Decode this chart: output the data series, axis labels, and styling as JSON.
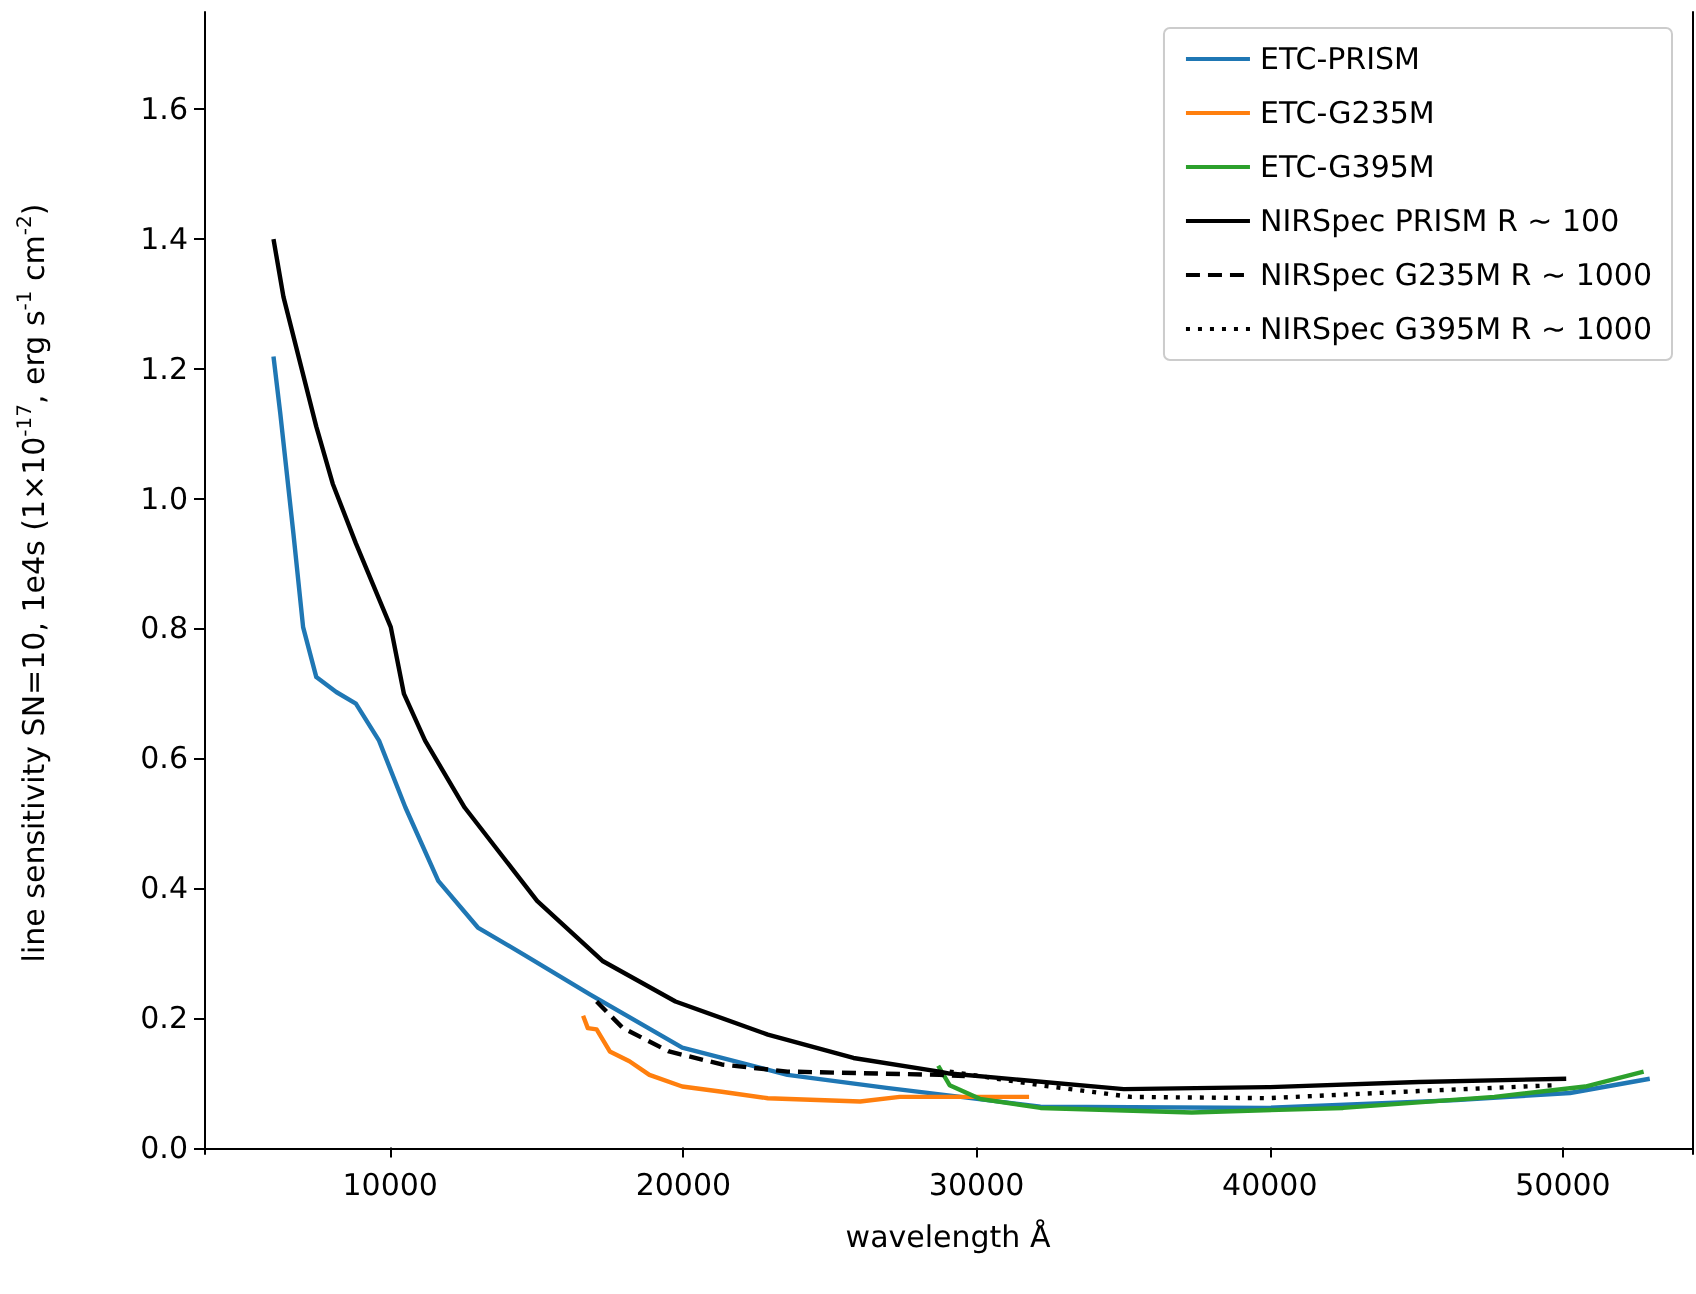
{
  "chart_data": {
    "type": "line",
    "xlabel": "wavelength Å",
    "ylabel": "line sensitivity SN=10, 1e4s (1×10$^{-17}$, erg s$^{-1}$ cm$^{-2}$)",
    "xlim": [
      3650,
      54400
    ],
    "ylim": [
      -0.01,
      1.75
    ],
    "xticks": [
      10000,
      20000,
      30000,
      40000,
      50000
    ],
    "yticks": [
      {
        "value": 0,
        "label": "0.0"
      },
      0.2,
      0.4,
      0.6,
      0.8,
      {
        "value": 1,
        "label": "1.0"
      },
      1.2,
      1.4,
      1.6
    ],
    "grid": false,
    "legend": "top right",
    "marker": "none",
    "series": [
      {
        "name": "ETC-PRISM",
        "color": "#1f77b4",
        "line_style": "solid",
        "x": [
          6020,
          6250,
          6700,
          7030,
          7480,
          8160,
          8830,
          9620,
          10520,
          11640,
          12990,
          14570,
          16810,
          19960,
          23550,
          26930,
          32180,
          39920,
          46370,
          50240,
          52960
        ],
        "values": [
          1.219,
          1.132,
          0.946,
          0.802,
          0.725,
          0.702,
          0.684,
          0.627,
          0.524,
          0.411,
          0.339,
          0.297,
          0.236,
          0.154,
          0.112,
          0.092,
          0.063,
          0.061,
          0.073,
          0.084,
          0.106
        ]
      },
      {
        "name": "ETC-G235M",
        "color": "#ff7f0e",
        "line_style": "solid",
        "x": [
          16580,
          16740,
          17040,
          17490,
          18160,
          18840,
          19960,
          21310,
          22880,
          26030,
          27380,
          29600,
          31790
        ],
        "values": [
          0.203,
          0.184,
          0.182,
          0.148,
          0.133,
          0.112,
          0.094,
          0.086,
          0.076,
          0.071,
          0.078,
          0.078,
          0.078
        ]
      },
      {
        "name": "ETC-G395M",
        "color": "#2ca02c",
        "line_style": "solid",
        "x": [
          28690,
          29080,
          30110,
          32180,
          37340,
          42500,
          47660,
          50760,
          52750
        ],
        "values": [
          0.126,
          0.096,
          0.075,
          0.061,
          0.054,
          0.061,
          0.078,
          0.094,
          0.117
        ]
      },
      {
        "name": "NIRSpec PRISM R ∼ 100",
        "color": "#000000",
        "line_style": "solid",
        "x": [
          6020,
          6360,
          7480,
          8040,
          8830,
          10020,
          10470,
          11190,
          12540,
          15010,
          17260,
          19730,
          22880,
          25800,
          28730,
          29080,
          35020,
          39920,
          45080,
          50110
        ],
        "values": [
          1.4,
          1.311,
          1.111,
          1.023,
          0.931,
          0.802,
          0.699,
          0.627,
          0.524,
          0.38,
          0.287,
          0.225,
          0.174,
          0.138,
          0.117,
          0.114,
          0.09,
          0.093,
          0.101,
          0.106
        ]
      },
      {
        "name": "NIRSpec G235M R ∼ 1000",
        "color": "#000000",
        "line_style": "dashed",
        "x": [
          17040,
          17940,
          19510,
          21310,
          23550,
          28730,
          29600
        ],
        "values": [
          0.225,
          0.184,
          0.148,
          0.128,
          0.117,
          0.112,
          0.11
        ]
      },
      {
        "name": "NIRSpec G395M R ∼ 1000",
        "color": "#000000",
        "line_style": "dotted",
        "x": [
          29080,
          32180,
          35270,
          39920,
          45080,
          49720
        ],
        "values": [
          0.117,
          0.096,
          0.078,
          0.076,
          0.087,
          0.096
        ]
      }
    ]
  }
}
